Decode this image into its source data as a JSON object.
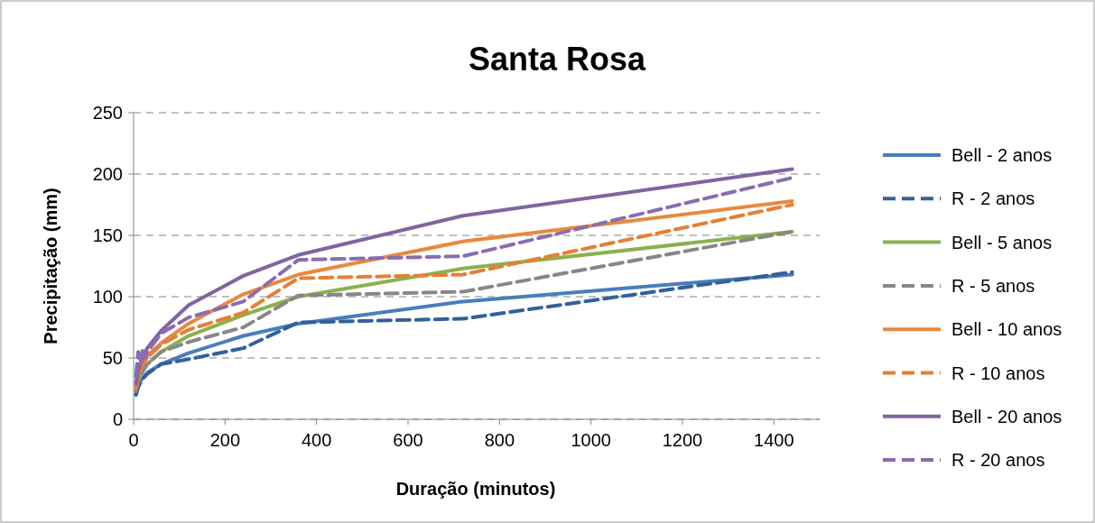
{
  "chart_data": {
    "type": "line",
    "title": "Santa Rosa",
    "xlabel": "Duração (minutos)",
    "ylabel": "Precipitação (mm)",
    "x": [
      5,
      10,
      15,
      20,
      25,
      30,
      60,
      120,
      240,
      360,
      720,
      1440
    ],
    "xlim": [
      0,
      1500
    ],
    "xticks": [
      0,
      200,
      400,
      600,
      800,
      1000,
      1200,
      1400
    ],
    "ylim": [
      0,
      250
    ],
    "yticks": [
      0,
      50,
      100,
      150,
      200,
      250
    ],
    "grid": "y",
    "legend": "right",
    "marker": "none",
    "series": [
      {
        "name": "Bell - 2 anos",
        "color": "#4a7ebb",
        "line_style": "solid",
        "values": [
          20,
          27,
          31,
          34,
          36,
          38,
          45,
          54,
          68,
          78,
          96,
          118
        ]
      },
      {
        "name": "R - 2 anos",
        "color": "#31619c",
        "line_style": "dashed",
        "values": [
          20,
          26,
          30,
          33,
          35,
          37,
          45,
          49,
          58,
          79,
          82,
          120
        ]
      },
      {
        "name": "Bell - 5 anos",
        "color": "#8cb04e",
        "line_style": "solid",
        "values": [
          24,
          32,
          37,
          40,
          43,
          45,
          55,
          68,
          85,
          100,
          123,
          153
        ]
      },
      {
        "name": "R - 5 anos",
        "color": "#878787",
        "line_style": "dashed",
        "values": [
          23,
          30,
          35,
          39,
          42,
          45,
          55,
          63,
          75,
          101,
          104,
          153
        ]
      },
      {
        "name": "Bell - 10 anos",
        "color": "#e9883d",
        "line_style": "solid",
        "values": [
          26,
          36,
          41,
          45,
          48,
          52,
          62,
          78,
          102,
          118,
          145,
          178
        ]
      },
      {
        "name": "R - 10 anos",
        "color": "#e57f32",
        "line_style": "dashed",
        "values": [
          25,
          34,
          40,
          44,
          48,
          50,
          61,
          73,
          87,
          115,
          118,
          175
        ]
      },
      {
        "name": "Bell - 20 anos",
        "color": "#8064a2",
        "line_style": "solid",
        "values": [
          29,
          40,
          46,
          51,
          55,
          58,
          72,
          93,
          117,
          134,
          166,
          204
        ]
      },
      {
        "name": "R - 20 anos",
        "color": "#8a6cb0",
        "line_style": "dashed",
        "values": [
          35,
          55,
          45,
          58,
          50,
          55,
          70,
          83,
          96,
          130,
          133,
          197
        ]
      }
    ]
  }
}
